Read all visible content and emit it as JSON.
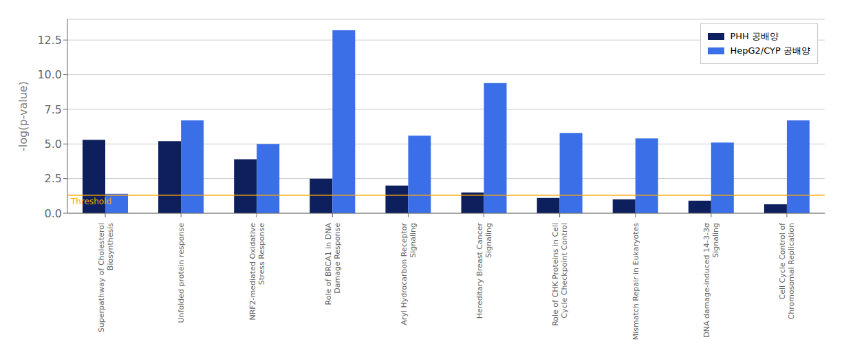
{
  "chart_data": {
    "type": "bar",
    "y_label": "-log(p-value)",
    "categories": [
      "Superpathway of Cholesterol\nBiosynthesis",
      "Unfolded protein response",
      "NRF2-mediated Oxidative\nStress Response",
      "Role of BRCA1 in DNA\nDamage Response",
      "Aryl Hydrocarbon Receptor\nSignaling",
      "Hereditary Breast Cancer\nSignaling",
      "Role of CHK Proteins in Cell\nCycle Checkpoint Control",
      "Mismatch Repair in Eukaryotes",
      "DNA damage-induced 14-3-3σ\nSignaling",
      "Cell Cycle Control of\nChromosomal Replication"
    ],
    "series": [
      {
        "name": "PHH 공배양",
        "color": "#0d1f5c",
        "values": [
          5.3,
          5.2,
          3.9,
          2.5,
          2.0,
          1.5,
          1.1,
          1.0,
          0.9,
          0.65
        ]
      },
      {
        "name": "HepG2/CYP 공배양",
        "color": "#3b6fe8",
        "values": [
          1.4,
          6.7,
          5.0,
          13.2,
          5.6,
          9.4,
          5.8,
          5.4,
          5.1,
          6.7
        ]
      }
    ],
    "threshold": {
      "value": 1.3,
      "label": "Threshold",
      "color": "#FFA500"
    },
    "ylim": [
      0,
      14
    ],
    "yticks": [
      {
        "value": 0,
        "label": "0.0"
      },
      2.5,
      {
        "value": 5,
        "label": "5.0"
      },
      7.5,
      {
        "value": 10,
        "label": "10.0"
      },
      12.5
    ],
    "grid": true,
    "legend": "upper right"
  }
}
